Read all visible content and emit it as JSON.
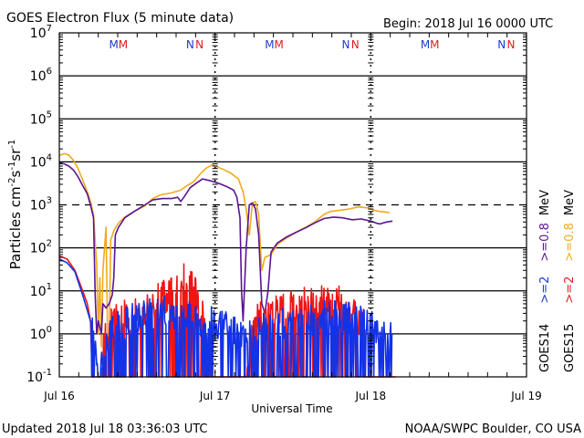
{
  "chart_data": {
    "type": "line",
    "title": "GOES Electron Flux (5 minute data)",
    "begin_label": "Begin: 2018 Jul 16 0000 UTC",
    "xlabel": "Universal Time",
    "ylabel": "Particles cm⁻²s⁻¹sr⁻¹",
    "ylabel_parts": {
      "base": "Particles cm",
      "e1": "-2",
      "s": "s",
      "e2": "-1",
      "sr": "sr",
      "e3": "-1"
    },
    "yscale": "log",
    "ylim": [
      0.1,
      10000000
    ],
    "xlim_days": [
      0,
      3
    ],
    "y_ticks": [
      {
        "base": "10",
        "exp": "7",
        "value": 10000000
      },
      {
        "base": "10",
        "exp": "6",
        "value": 1000000
      },
      {
        "base": "10",
        "exp": "5",
        "value": 100000
      },
      {
        "base": "10",
        "exp": "4",
        "value": 10000
      },
      {
        "base": "10",
        "exp": "3",
        "value": 1000
      },
      {
        "base": "10",
        "exp": "2",
        "value": 100
      },
      {
        "base": "10",
        "exp": "1",
        "value": 10
      },
      {
        "base": "10",
        "exp": "0",
        "value": 1
      },
      {
        "base": "10",
        "exp": "-1",
        "value": 0.1
      }
    ],
    "x_ticks": [
      {
        "label": "Jul 16",
        "day": 0
      },
      {
        "label": "Jul 17",
        "day": 1
      },
      {
        "label": "Jul 18",
        "day": 2
      },
      {
        "label": "Jul 19",
        "day": 3
      }
    ],
    "reference_lines": [
      {
        "value": 1000,
        "style": "dashed"
      }
    ],
    "grid": true,
    "markers": [
      {
        "label": "M",
        "day": 0.35,
        "satellite": "GOES14",
        "color": "#1e3cc8"
      },
      {
        "label": "M",
        "day": 0.41,
        "satellite": "GOES15",
        "color": "#dc1e1e"
      },
      {
        "label": "N",
        "day": 0.84,
        "satellite": "GOES14",
        "color": "#1e3cc8"
      },
      {
        "label": "N",
        "day": 0.9,
        "satellite": "GOES15",
        "color": "#dc1e1e"
      },
      {
        "label": "M",
        "day": 1.35,
        "satellite": "GOES14",
        "color": "#1e3cc8"
      },
      {
        "label": "M",
        "day": 1.41,
        "satellite": "GOES15",
        "color": "#dc1e1e"
      },
      {
        "label": "N",
        "day": 1.84,
        "satellite": "GOES14",
        "color": "#1e3cc8"
      },
      {
        "label": "N",
        "day": 1.9,
        "satellite": "GOES15",
        "color": "#dc1e1e"
      },
      {
        "label": "M",
        "day": 2.35,
        "satellite": "GOES14",
        "color": "#1e3cc8"
      },
      {
        "label": "M",
        "day": 2.41,
        "satellite": "GOES15",
        "color": "#dc1e1e"
      },
      {
        "label": "N",
        "day": 2.84,
        "satellite": "GOES14",
        "color": "#1e3cc8"
      },
      {
        "label": "N",
        "day": 2.9,
        "satellite": "GOES15",
        "color": "#dc1e1e"
      }
    ],
    "legend": {
      "placement": "right",
      "satellites": [
        "GOES14",
        "GOES15"
      ],
      "entries": [
        {
          "label": ">=2",
          "satellite": "GOES14",
          "color": "#1e3cc8"
        },
        {
          "label": ">=0.8",
          "satellite": "GOES14",
          "color": "#5a1496"
        },
        {
          "label": ">=2",
          "satellite": "GOES15",
          "color": "#dc1e1e"
        },
        {
          "label": ">=0.8",
          "satellite": "GOES15",
          "color": "#f0aa1e"
        }
      ],
      "unit": "MeV"
    },
    "series": [
      {
        "name": "GOES15 >=0.8 MeV",
        "color": "#f0aa1e",
        "style": "line",
        "points": [
          [
            0,
            14000
          ],
          [
            0.03,
            15500
          ],
          [
            0.06,
            14500
          ],
          [
            0.09,
            11000
          ],
          [
            0.12,
            7000
          ],
          [
            0.15,
            3800
          ],
          [
            0.18,
            2000
          ],
          [
            0.2,
            1200
          ],
          [
            0.22,
            600
          ],
          [
            0.24,
            40
          ],
          [
            0.25,
            1
          ],
          [
            0.26,
            20
          ],
          [
            0.27,
            0.5
          ],
          [
            0.28,
            30
          ],
          [
            0.3,
            300
          ],
          [
            0.31,
            1
          ],
          [
            0.32,
            0.5
          ],
          [
            0.33,
            150
          ],
          [
            0.35,
            250
          ],
          [
            0.38,
            380
          ],
          [
            0.42,
            520
          ],
          [
            0.48,
            700
          ],
          [
            0.55,
            950
          ],
          [
            0.6,
            1400
          ],
          [
            0.65,
            1700
          ],
          [
            0.72,
            1900
          ],
          [
            0.78,
            2200
          ],
          [
            0.82,
            2800
          ],
          [
            0.86,
            3400
          ],
          [
            0.9,
            5000
          ],
          [
            0.94,
            7000
          ],
          [
            0.98,
            8500
          ],
          [
            1.02,
            7500
          ],
          [
            1.06,
            6500
          ],
          [
            1.1,
            5500
          ],
          [
            1.15,
            4000
          ],
          [
            1.18,
            2000
          ],
          [
            1.2,
            800
          ],
          [
            1.22,
            200
          ],
          [
            1.24,
            1100
          ],
          [
            1.26,
            1200
          ],
          [
            1.28,
            600
          ],
          [
            1.29,
            120
          ],
          [
            1.3,
            30
          ],
          [
            1.32,
            60
          ],
          [
            1.36,
            70
          ],
          [
            1.4,
            120
          ],
          [
            1.46,
            170
          ],
          [
            1.52,
            230
          ],
          [
            1.58,
            300
          ],
          [
            1.64,
            400
          ],
          [
            1.7,
            600
          ],
          [
            1.74,
            700
          ],
          [
            1.8,
            750
          ],
          [
            1.86,
            800
          ],
          [
            1.92,
            900
          ],
          [
            1.98,
            850
          ],
          [
            2.02,
            750
          ],
          [
            2.06,
            700
          ],
          [
            2.1,
            680
          ],
          [
            2.12,
            650
          ]
        ]
      },
      {
        "name": "GOES14 >=0.8 MeV",
        "color": "#5a1496",
        "style": "line",
        "points": [
          [
            0,
            9500
          ],
          [
            0.03,
            9000
          ],
          [
            0.06,
            8000
          ],
          [
            0.09,
            6500
          ],
          [
            0.12,
            4500
          ],
          [
            0.15,
            2800
          ],
          [
            0.18,
            1800
          ],
          [
            0.2,
            1000
          ],
          [
            0.22,
            500
          ],
          [
            0.23,
            8
          ],
          [
            0.24,
            1
          ],
          [
            0.25,
            2
          ],
          [
            0.27,
            1
          ],
          [
            0.28,
            5
          ],
          [
            0.3,
            4
          ],
          [
            0.32,
            5
          ],
          [
            0.34,
            8
          ],
          [
            0.35,
            20
          ],
          [
            0.36,
            200
          ],
          [
            0.38,
            300
          ],
          [
            0.42,
            500
          ],
          [
            0.48,
            700
          ],
          [
            0.55,
            1000
          ],
          [
            0.6,
            1300
          ],
          [
            0.66,
            1400
          ],
          [
            0.72,
            1400
          ],
          [
            0.76,
            1500
          ],
          [
            0.78,
            1200
          ],
          [
            0.8,
            1500
          ],
          [
            0.84,
            2500
          ],
          [
            0.88,
            3200
          ],
          [
            0.92,
            4000
          ],
          [
            0.96,
            3700
          ],
          [
            1.0,
            3400
          ],
          [
            1.04,
            3000
          ],
          [
            1.08,
            2600
          ],
          [
            1.12,
            2200
          ],
          [
            1.14,
            1500
          ],
          [
            1.16,
            500
          ],
          [
            1.17,
            10
          ],
          [
            1.18,
            2
          ],
          [
            1.2,
            100
          ],
          [
            1.22,
            1000
          ],
          [
            1.24,
            1100
          ],
          [
            1.26,
            800
          ],
          [
            1.28,
            200
          ],
          [
            1.3,
            5
          ],
          [
            1.32,
            3
          ],
          [
            1.34,
            10
          ],
          [
            1.36,
            80
          ],
          [
            1.4,
            130
          ],
          [
            1.46,
            180
          ],
          [
            1.52,
            230
          ],
          [
            1.58,
            290
          ],
          [
            1.64,
            380
          ],
          [
            1.7,
            480
          ],
          [
            1.76,
            520
          ],
          [
            1.82,
            500
          ],
          [
            1.88,
            450
          ],
          [
            1.94,
            470
          ],
          [
            2.0,
            420
          ],
          [
            2.04,
            370
          ],
          [
            2.06,
            360
          ],
          [
            2.1,
            400
          ],
          [
            2.14,
            420
          ]
        ]
      },
      {
        "name": "GOES15 >=2 MeV",
        "color": "#f01414",
        "style": "spiky",
        "points": [
          [
            0,
            65
          ],
          [
            0.05,
            55
          ],
          [
            0.1,
            30
          ],
          [
            0.15,
            10
          ],
          [
            0.18,
            5
          ],
          [
            0.2,
            2
          ],
          [
            0.21,
            0.1
          ],
          [
            0.26,
            0.1
          ],
          [
            0.3,
            1.5
          ],
          [
            0.35,
            2.5
          ],
          [
            0.4,
            3
          ],
          [
            0.45,
            3.5
          ],
          [
            0.5,
            4
          ],
          [
            0.55,
            5
          ],
          [
            0.6,
            6
          ],
          [
            0.65,
            8
          ],
          [
            0.7,
            10
          ],
          [
            0.74,
            12
          ],
          [
            0.78,
            14
          ],
          [
            0.8,
            22
          ],
          [
            0.84,
            15
          ],
          [
            0.88,
            10
          ],
          [
            0.92,
            5
          ],
          [
            0.96,
            1
          ],
          [
            0.98,
            0.1
          ],
          [
            1.2,
            0.1
          ],
          [
            1.25,
            2
          ],
          [
            1.3,
            3
          ],
          [
            1.4,
            4
          ],
          [
            1.5,
            5
          ],
          [
            1.6,
            6
          ],
          [
            1.7,
            7
          ],
          [
            1.8,
            8
          ],
          [
            1.85,
            6
          ],
          [
            1.9,
            4
          ],
          [
            1.94,
            2
          ],
          [
            1.96,
            0.1
          ],
          [
            2.16,
            0.1
          ]
        ]
      },
      {
        "name": "GOES14 >=2 MeV",
        "color": "#1432e6",
        "style": "spiky",
        "points": [
          [
            0,
            55
          ],
          [
            0.05,
            45
          ],
          [
            0.1,
            28
          ],
          [
            0.15,
            8
          ],
          [
            0.2,
            2
          ],
          [
            0.22,
            1
          ],
          [
            0.26,
            0.1
          ],
          [
            0.3,
            1
          ],
          [
            0.4,
            2
          ],
          [
            0.5,
            3
          ],
          [
            0.6,
            3.5
          ],
          [
            0.7,
            4
          ],
          [
            0.8,
            3
          ],
          [
            0.9,
            2.5
          ],
          [
            1.0,
            2
          ],
          [
            1.1,
            1.5
          ],
          [
            1.2,
            1
          ],
          [
            1.3,
            1.5
          ],
          [
            1.4,
            2
          ],
          [
            1.5,
            2.5
          ],
          [
            1.6,
            2.5
          ],
          [
            1.7,
            3
          ],
          [
            1.8,
            3
          ],
          [
            1.9,
            2.5
          ],
          [
            2.0,
            2
          ],
          [
            2.1,
            1
          ],
          [
            2.14,
            1
          ]
        ]
      }
    ]
  },
  "footer": {
    "updated": "Updated 2018 Jul 18 03:36:03 UTC",
    "source": "NOAA/SWPC Boulder, CO USA"
  }
}
